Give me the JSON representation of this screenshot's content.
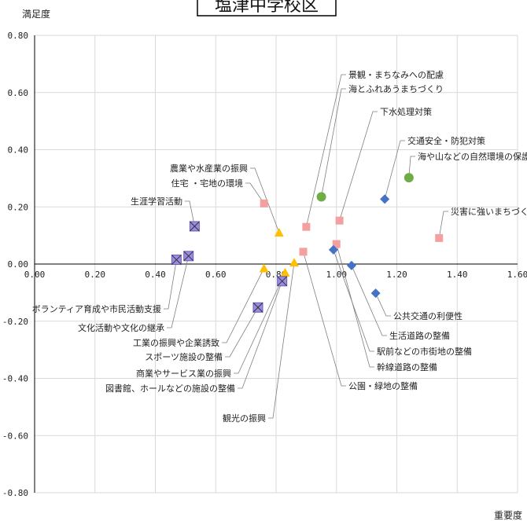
{
  "chart_data": {
    "type": "scatter",
    "title": "塩津中学校区",
    "xlabel": "重要度",
    "ylabel": "満足度",
    "xlim": [
      0,
      1.6
    ],
    "ylim": [
      -0.8,
      0.8
    ],
    "xticks": [
      "0.00",
      "0.20",
      "0.40",
      "0.60",
      "0.80",
      "1.00",
      "1.20",
      "1.40",
      "1.60"
    ],
    "yticks": [
      "0.80",
      "0.60",
      "0.40",
      "0.20",
      "0.00",
      "-0.20",
      "-0.40",
      "-0.60",
      "-0.80"
    ],
    "grid": true,
    "colors": {
      "circle": "#70AD47",
      "diamond": "#4472C4",
      "square": "#F4A0A0",
      "triangle": "#FFC000",
      "cross": "#9C8BE0"
    },
    "points": [
      {
        "label": "景観・まちなみへの配慮",
        "x": 0.9,
        "y": 0.13,
        "shape": "square"
      },
      {
        "label": "海とふれあうまちづくり",
        "x": 0.95,
        "y": 0.235,
        "shape": "circle"
      },
      {
        "label": "下水処理対策",
        "x": 1.01,
        "y": 0.152,
        "shape": "square"
      },
      {
        "label": "交通安全・防犯対策",
        "x": 1.16,
        "y": 0.227,
        "shape": "diamond"
      },
      {
        "label": "海や山などの自然環境の保護",
        "x": 1.24,
        "y": 0.302,
        "shape": "circle"
      },
      {
        "label": "災害に強いまちづく",
        "x": 1.34,
        "y": 0.091,
        "shape": "square"
      },
      {
        "label": "農業や水産業の振興",
        "x": 0.81,
        "y": 0.11,
        "shape": "triangle"
      },
      {
        "label": "住宅 ・宅地の環境",
        "x": 0.76,
        "y": 0.212,
        "shape": "square"
      },
      {
        "label": "生涯学習活動",
        "x": 0.53,
        "y": 0.132,
        "shape": "cross"
      },
      {
        "label": "ボランティア育成や市民活動支援",
        "x": 0.47,
        "y": 0.015,
        "shape": "cross"
      },
      {
        "label": "文化活動や文化の継承",
        "x": 0.51,
        "y": 0.028,
        "shape": "cross"
      },
      {
        "label": "工業の振興や企業誘致",
        "x": 0.76,
        "y": -0.015,
        "shape": "triangle"
      },
      {
        "label": "スポーツ施設の整備",
        "x": 0.74,
        "y": -0.152,
        "shape": "cross"
      },
      {
        "label": "商業やサービス業の振興",
        "x": 0.83,
        "y": -0.03,
        "shape": "triangle"
      },
      {
        "label": "図書館、ホールなどの施設の整備",
        "x": 0.82,
        "y": -0.06,
        "shape": "cross"
      },
      {
        "label": "観光の振興",
        "x": 0.86,
        "y": 0.005,
        "shape": "triangle"
      },
      {
        "label": "公園・緑地の整備",
        "x": 0.89,
        "y": 0.043,
        "shape": "square"
      },
      {
        "label": "幹線道路の整備",
        "x": 1.0,
        "y": 0.07,
        "shape": "square"
      },
      {
        "label": "駅前などの市街地の整備",
        "x": 0.99,
        "y": 0.05,
        "shape": "diamond"
      },
      {
        "label": "生活道路の整備",
        "x": 1.05,
        "y": -0.005,
        "shape": "diamond"
      },
      {
        "label": "公共交通の利便性",
        "x": 1.13,
        "y": -0.102,
        "shape": "diamond"
      }
    ]
  }
}
